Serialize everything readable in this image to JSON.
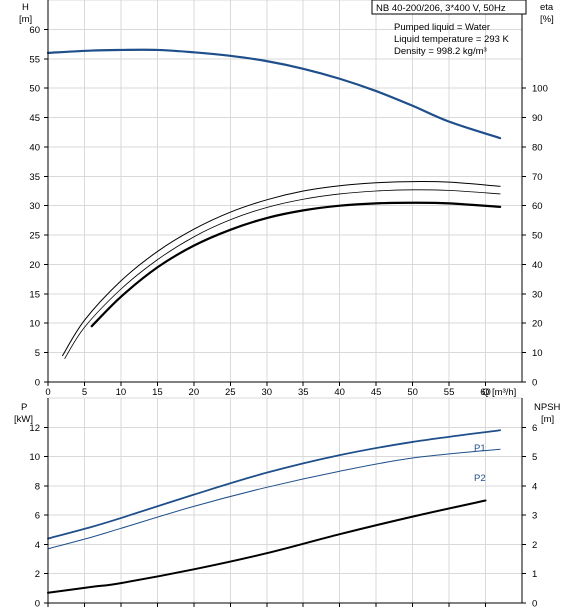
{
  "chart_data": [
    {
      "type": "line",
      "panel": "head-efficiency",
      "title": "NB 40-200/206, 3*400 V, 50Hz",
      "info": [
        "Pumped liquid = Water",
        "Liquid temperature = 293 K",
        "Density = 998.2 kg/m³"
      ],
      "xlabel": "Q [m³/h]",
      "xlim": [
        0,
        65
      ],
      "xticks": [
        0,
        5,
        10,
        15,
        20,
        25,
        30,
        35,
        40,
        45,
        50,
        55,
        60
      ],
      "ylabel_left": [
        "H",
        "[m]"
      ],
      "ylim_left": [
        0,
        65
      ],
      "yticks_left": [
        0,
        5,
        10,
        15,
        20,
        25,
        30,
        35,
        40,
        45,
        50,
        55,
        60
      ],
      "ylabel_right": [
        "eta",
        "[%]"
      ],
      "ylim_right": [
        0,
        130
      ],
      "yticks_right": [
        0,
        10,
        20,
        30,
        40,
        50,
        60,
        70,
        80,
        90,
        100
      ],
      "grid": true,
      "series": [
        {
          "axis": "left",
          "color": "#1f4f8b",
          "width": 2.2,
          "x": [
            0,
            6,
            10,
            15,
            20,
            25,
            30,
            35,
            40,
            45,
            50,
            55,
            62
          ],
          "y": [
            56.0,
            56.4,
            56.5,
            56.5,
            56.1,
            55.5,
            54.6,
            53.3,
            51.6,
            49.5,
            47.0,
            44.3,
            41.5
          ]
        },
        {
          "axis": "left",
          "color": "#000000",
          "width": 1.0,
          "x": [
            2,
            5,
            10,
            15,
            20,
            25,
            30,
            35,
            40,
            45,
            50,
            55,
            62
          ],
          "y": [
            4.5,
            10.5,
            17.2,
            22.2,
            26.0,
            28.9,
            31.0,
            32.5,
            33.4,
            33.9,
            34.1,
            34.0,
            33.3
          ]
        },
        {
          "axis": "left",
          "color": "#000000",
          "width": 2.2,
          "x": [
            6,
            10,
            15,
            20,
            25,
            30,
            35,
            40,
            45,
            50,
            55,
            62
          ],
          "y": [
            9.5,
            14.5,
            19.5,
            23.2,
            25.9,
            27.9,
            29.2,
            30.0,
            30.4,
            30.5,
            30.4,
            29.8
          ]
        },
        {
          "axis": "left",
          "color": "#000000",
          "width": 0.8,
          "x": [
            2.3,
            5,
            10,
            15,
            20,
            25,
            30,
            35,
            40,
            45,
            50,
            55,
            62
          ],
          "y": [
            4.0,
            9.3,
            15.8,
            20.8,
            24.7,
            27.6,
            29.7,
            31.1,
            32.0,
            32.5,
            32.7,
            32.6,
            32.0
          ]
        }
      ]
    },
    {
      "type": "line",
      "panel": "power-npsh",
      "xlim": [
        0,
        65
      ],
      "ylabel_left": [
        "P",
        "[kW]"
      ],
      "ylim_left": [
        0,
        14
      ],
      "yticks_left": [
        0,
        2,
        4,
        6,
        8,
        10,
        12
      ],
      "ylabel_right": [
        "NPSH",
        "[m]"
      ],
      "ylim_right": [
        0,
        7
      ],
      "yticks_right": [
        0,
        1,
        2,
        3,
        4,
        5,
        6
      ],
      "grid": true,
      "series": [
        {
          "name": "P1",
          "axis": "left",
          "color": "#1f4f8b",
          "width": 1.8,
          "x": [
            0,
            6,
            10,
            20,
            30,
            40,
            50,
            62
          ],
          "y": [
            4.4,
            5.2,
            5.8,
            7.4,
            8.9,
            10.1,
            11.0,
            11.8
          ]
        },
        {
          "name": "P2",
          "axis": "left",
          "color": "#1f4f8b",
          "width": 1.0,
          "x": [
            0,
            6,
            10,
            20,
            30,
            40,
            50,
            62
          ],
          "y": [
            3.7,
            4.5,
            5.1,
            6.6,
            7.9,
            9.0,
            9.9,
            10.5
          ]
        },
        {
          "axis": "right",
          "color": "#000000",
          "width": 2.0,
          "x": [
            0,
            6,
            10,
            20,
            30,
            40,
            50,
            60
          ],
          "y": [
            0.35,
            0.55,
            0.68,
            1.15,
            1.7,
            2.35,
            2.95,
            3.5
          ]
        }
      ]
    }
  ]
}
